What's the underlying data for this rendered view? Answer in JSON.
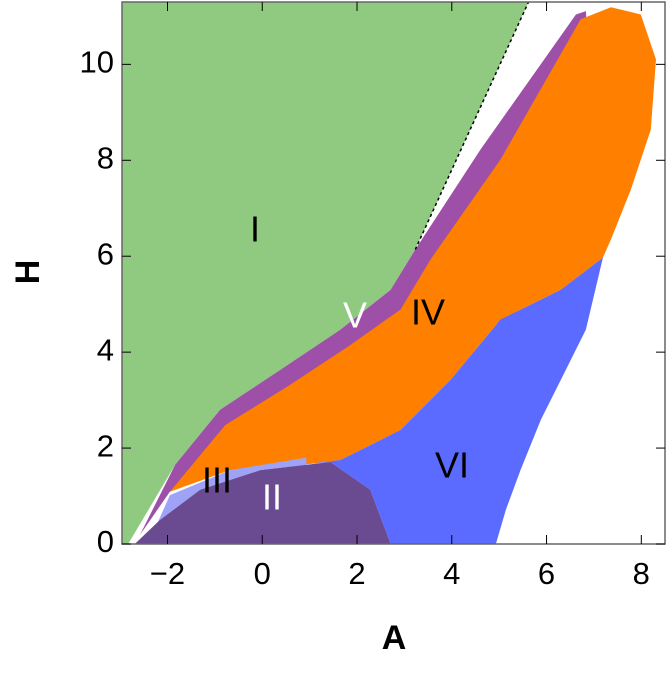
{
  "chart_data": {
    "type": "region",
    "x_label": "A",
    "y_label": "H",
    "xlim": [
      -2.96,
      8.5
    ],
    "ylim": [
      0,
      11.3
    ],
    "xticks": [
      {
        "value": -2,
        "label": "−2"
      },
      0,
      2,
      4,
      6,
      8
    ],
    "yticks": [
      0,
      2,
      4,
      6,
      8,
      10
    ],
    "regions": [
      {
        "name": "I",
        "color": "#8fca80",
        "label_color": "#000000",
        "x": [
          -2.83,
          -1.84,
          -0.89,
          0.38,
          1.65,
          2.71,
          3.23,
          5.62,
          -2.96,
          -2.96
        ],
        "y": [
          0,
          1.65,
          2.8,
          3.63,
          4.47,
          5.3,
          6.14,
          11.3,
          11.3,
          0
        ]
      },
      {
        "name": "V",
        "color": "#9e4fa8",
        "label_color": "#ffffff",
        "x": [
          -2.58,
          -1.84,
          -0.89,
          0.38,
          1.65,
          2.71,
          3.23,
          4.61,
          6.62,
          6.83,
          7.19,
          4.0,
          -1.95
        ],
        "y": [
          0.19,
          1.65,
          2.8,
          3.63,
          4.47,
          5.3,
          6.14,
          8.23,
          11.04,
          11.11,
          5.97,
          4.0,
          1.09
        ]
      },
      {
        "name": "IV",
        "color": "#ff7f00",
        "label_color": "#000000",
        "x": [
          -1.95,
          -0.78,
          0.59,
          1.86,
          2.92,
          3.55,
          5.03,
          6.72,
          7.36,
          7.99,
          8.31,
          8.2,
          7.78,
          7.36,
          7.19,
          6.3,
          5.03,
          3.97,
          2.92,
          1.65,
          0.8,
          -0.68,
          -1.95
        ],
        "y": [
          1.09,
          2.48,
          3.32,
          4.15,
          4.89,
          5.93,
          8.02,
          10.94,
          11.19,
          11.04,
          10.1,
          8.64,
          7.39,
          6.35,
          5.97,
          5.3,
          4.68,
          3.42,
          2.38,
          1.75,
          1.65,
          1.54,
          1.09
        ]
      },
      {
        "name": "VI",
        "color": "#5b6bff",
        "label_color": "#000000",
        "x": [
          0.8,
          1.65,
          2.92,
          3.97,
          5.03,
          6.3,
          7.19,
          6.83,
          6.3,
          5.88,
          5.45,
          5.14,
          4.93,
          2.71,
          2.28,
          1.44
        ],
        "y": [
          1.65,
          1.75,
          2.38,
          3.42,
          4.68,
          5.3,
          5.97,
          4.47,
          3.42,
          2.59,
          1.54,
          0.71,
          0,
          0,
          1.13,
          1.71
        ]
      },
      {
        "name": "III",
        "color": "#9fa3f7",
        "label_color": "#000000",
        "x": [
          -2.37,
          -1.95,
          -0.68,
          0.93,
          0.93,
          -0.04,
          -1.31,
          -2.16
        ],
        "y": [
          0.08,
          1.02,
          1.54,
          1.8,
          1.65,
          1.54,
          1.13,
          0.5
        ]
      },
      {
        "name": "II",
        "color": "#6a4a90",
        "label_color": "#ffffff",
        "x": [
          -2.69,
          -2.16,
          -1.31,
          -0.04,
          1.44,
          2.28,
          2.71
        ],
        "y": [
          0,
          0.5,
          1.13,
          1.54,
          1.71,
          1.13,
          0
        ]
      }
    ]
  }
}
